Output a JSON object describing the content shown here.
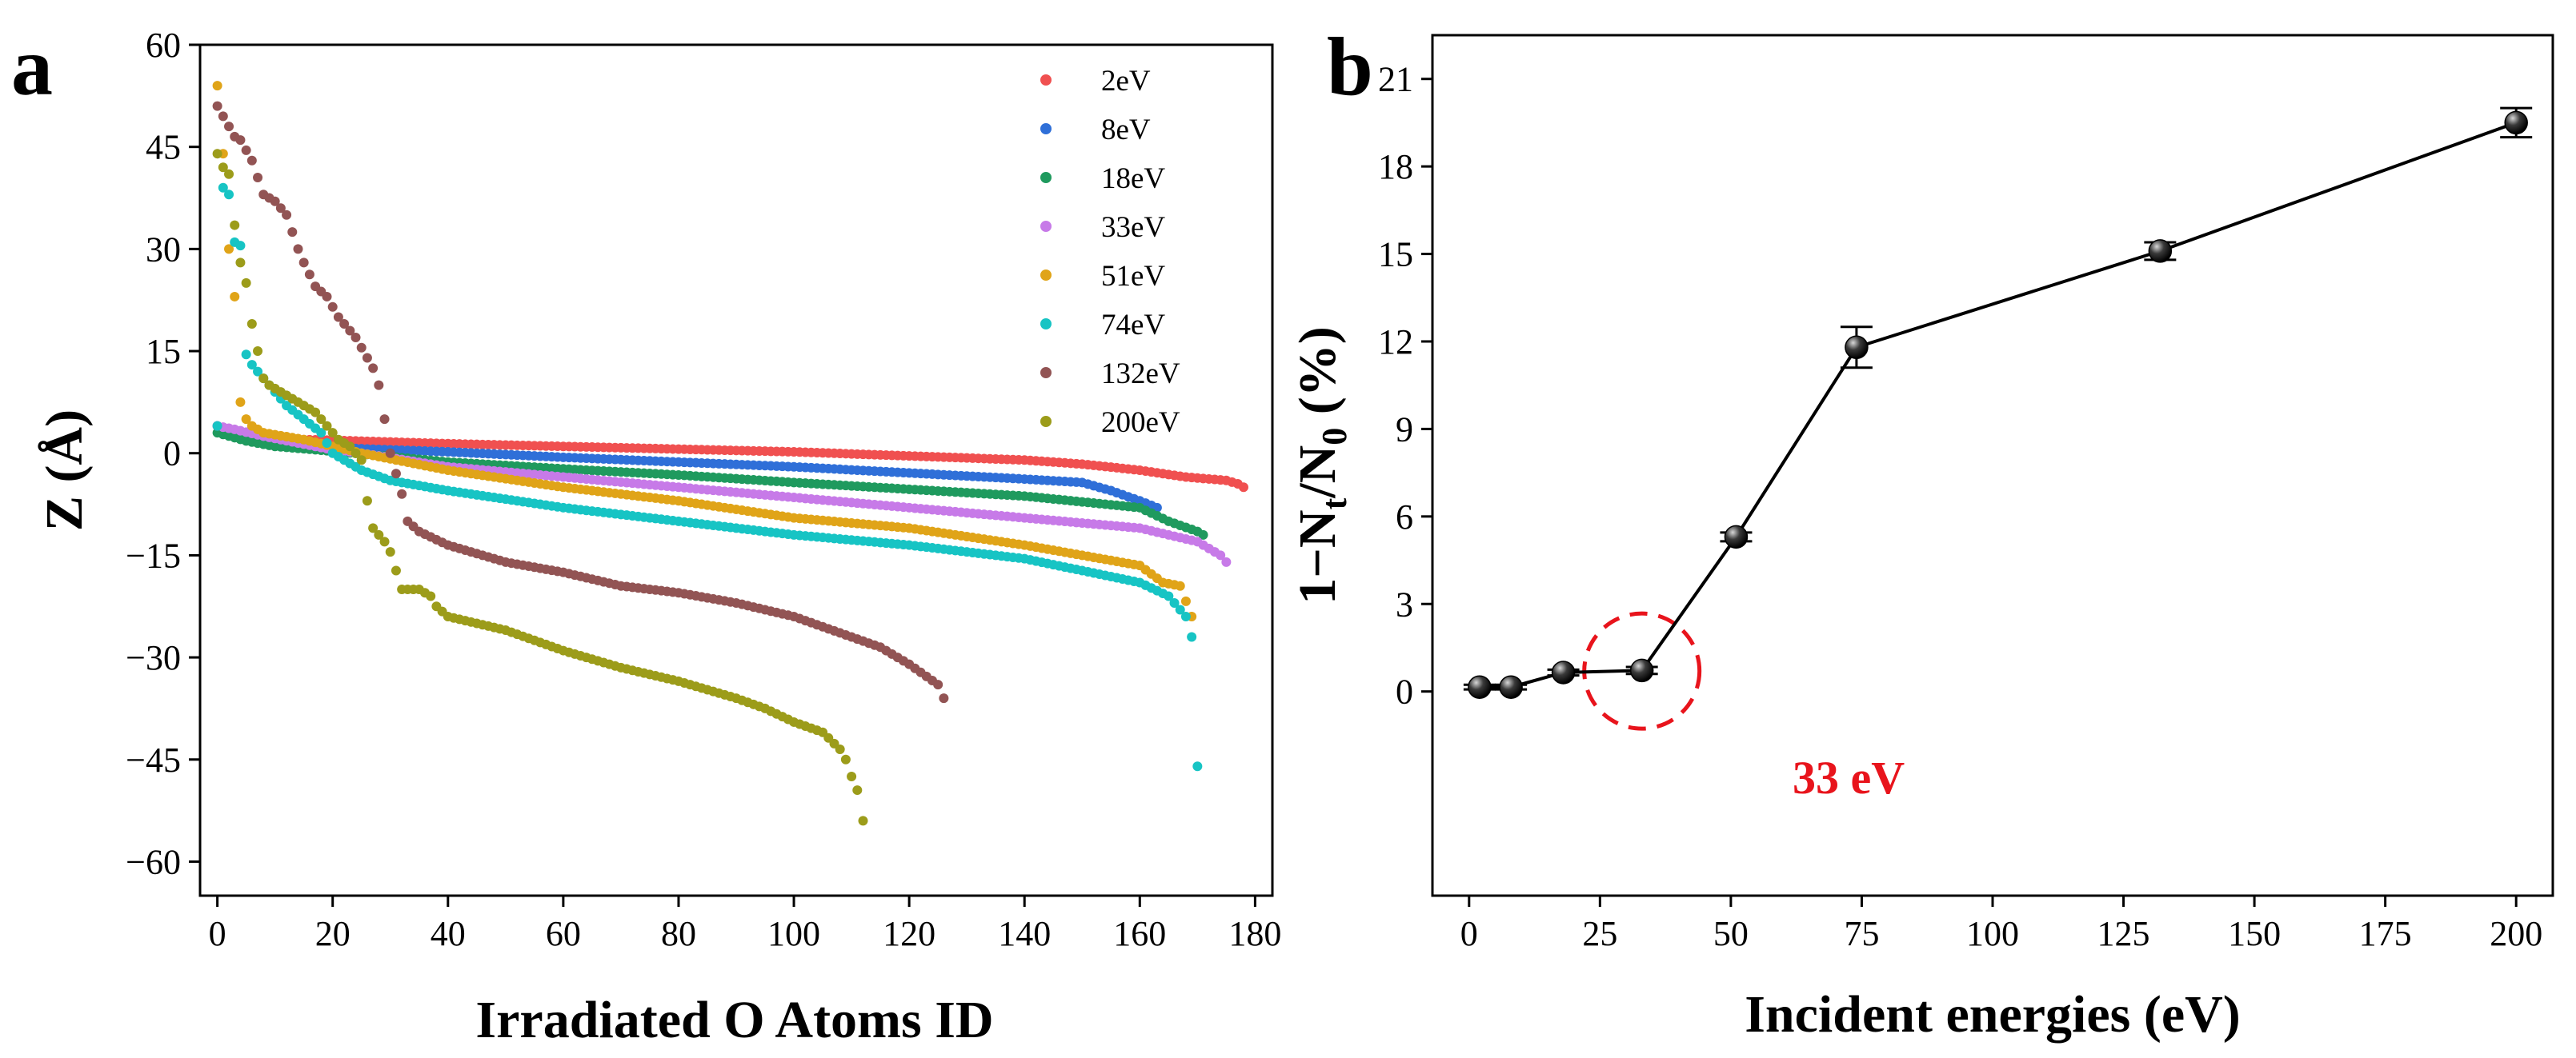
{
  "chart_data": [
    {
      "type": "scatter",
      "panel_label": "a",
      "xlabel": "Irradiated O Atoms ID",
      "ylabel": "Z (Å)",
      "xlim": [
        -3,
        183
      ],
      "ylim": [
        -65,
        60
      ],
      "xticks": [
        0,
        20,
        40,
        60,
        80,
        100,
        120,
        140,
        160,
        180
      ],
      "yticks": [
        60,
        45,
        30,
        15,
        0,
        -15,
        -30,
        -45,
        -60
      ],
      "legend_position": "top-right",
      "series": [
        {
          "name": "2eV",
          "color": "#f05050",
          "points": [
            [
              0,
              4
            ],
            [
              2,
              3
            ],
            [
              5,
              2.3
            ],
            [
              10,
              2.1
            ],
            [
              20,
              1.9
            ],
            [
              40,
              1.4
            ],
            [
              60,
              1.0
            ],
            [
              80,
              0.6
            ],
            [
              100,
              0.2
            ],
            [
              120,
              -0.4
            ],
            [
              140,
              -1.0
            ],
            [
              150,
              -1.6
            ],
            [
              160,
              -2.5
            ],
            [
              168,
              -3.5
            ],
            [
              175,
              -4
            ],
            [
              177,
              -4.5
            ],
            [
              178,
              -5
            ]
          ]
        },
        {
          "name": "8eV",
          "color": "#2f6fd8",
          "points": [
            [
              0,
              4
            ],
            [
              3,
              2.5
            ],
            [
              10,
              1.5
            ],
            [
              20,
              0.8
            ],
            [
              40,
              0.2
            ],
            [
              60,
              -0.6
            ],
            [
              80,
              -1.3
            ],
            [
              100,
              -2
            ],
            [
              120,
              -2.9
            ],
            [
              140,
              -3.8
            ],
            [
              150,
              -4.3
            ],
            [
              155,
              -5.5
            ],
            [
              160,
              -7
            ],
            [
              163,
              -8
            ]
          ]
        },
        {
          "name": "18eV",
          "color": "#1f9a5e",
          "points": [
            [
              0,
              3
            ],
            [
              5,
              1.8
            ],
            [
              10,
              1
            ],
            [
              20,
              0.3
            ],
            [
              40,
              -1.3
            ],
            [
              60,
              -2.3
            ],
            [
              80,
              -3.2
            ],
            [
              100,
              -4.3
            ],
            [
              120,
              -5.3
            ],
            [
              140,
              -6.3
            ],
            [
              160,
              -8
            ],
            [
              165,
              -10
            ],
            [
              170,
              -11.5
            ],
            [
              171,
              -12
            ]
          ]
        },
        {
          "name": "33eV",
          "color": "#c77ae8",
          "points": [
            [
              0,
              4
            ],
            [
              3,
              3.5
            ],
            [
              8,
              2.5
            ],
            [
              20,
              0.5
            ],
            [
              25,
              0
            ],
            [
              40,
              -2
            ],
            [
              60,
              -3.5
            ],
            [
              80,
              -5
            ],
            [
              100,
              -6.5
            ],
            [
              120,
              -8
            ],
            [
              140,
              -9.5
            ],
            [
              160,
              -11
            ],
            [
              170,
              -13
            ],
            [
              174,
              -15
            ],
            [
              175,
              -16
            ]
          ]
        },
        {
          "name": "51eV",
          "color": "#e0a418",
          "points": [
            [
              0,
              54
            ],
            [
              1,
              44
            ],
            [
              2,
              30
            ],
            [
              3,
              23
            ],
            [
              4,
              7.5
            ],
            [
              5,
              5
            ],
            [
              6,
              4
            ],
            [
              8,
              3
            ],
            [
              15,
              2
            ],
            [
              25,
              0
            ],
            [
              40,
              -2.5
            ],
            [
              60,
              -5
            ],
            [
              80,
              -7
            ],
            [
              100,
              -9.5
            ],
            [
              120,
              -11
            ],
            [
              140,
              -13.5
            ],
            [
              160,
              -16.5
            ],
            [
              164,
              -19
            ],
            [
              167,
              -19.5
            ],
            [
              169,
              -24
            ]
          ]
        },
        {
          "name": "74eV",
          "color": "#17c4c4",
          "points": [
            [
              0,
              4
            ],
            [
              1,
              39
            ],
            [
              2,
              38
            ],
            [
              3,
              31
            ],
            [
              4,
              30.5
            ],
            [
              5,
              14.5
            ],
            [
              6,
              13
            ],
            [
              8,
              11
            ],
            [
              10,
              9
            ],
            [
              12,
              7
            ],
            [
              15,
              5
            ],
            [
              18,
              3
            ],
            [
              20,
              0
            ],
            [
              25,
              -2.5
            ],
            [
              30,
              -4
            ],
            [
              40,
              -5.5
            ],
            [
              60,
              -8
            ],
            [
              80,
              -10
            ],
            [
              100,
              -12
            ],
            [
              120,
              -13.5
            ],
            [
              140,
              -15.5
            ],
            [
              160,
              -19
            ],
            [
              165,
              -21
            ],
            [
              168,
              -24
            ],
            [
              169,
              -27
            ],
            [
              170,
              -46
            ]
          ]
        },
        {
          "name": "132eV",
          "color": "#925454",
          "points": [
            [
              0,
              51
            ],
            [
              1,
              49.5
            ],
            [
              3,
              46.5
            ],
            [
              4,
              46
            ],
            [
              6,
              43
            ],
            [
              8,
              38
            ],
            [
              9,
              37.5
            ],
            [
              10,
              37
            ],
            [
              12,
              35
            ],
            [
              14,
              30
            ],
            [
              15,
              28
            ],
            [
              17,
              24.5
            ],
            [
              19,
              23
            ],
            [
              21,
              20
            ],
            [
              22,
              19
            ],
            [
              24,
              17
            ],
            [
              25,
              15.5
            ],
            [
              27,
              12.5
            ],
            [
              28,
              10
            ],
            [
              30,
              0
            ],
            [
              31,
              -3
            ],
            [
              32,
              -6
            ],
            [
              33,
              -10
            ],
            [
              35,
              -11.5
            ],
            [
              40,
              -13.5
            ],
            [
              50,
              -16
            ],
            [
              60,
              -17.5
            ],
            [
              70,
              -19.5
            ],
            [
              80,
              -20.5
            ],
            [
              90,
              -22
            ],
            [
              100,
              -24
            ],
            [
              110,
              -27
            ],
            [
              115,
              -28.5
            ],
            [
              120,
              -31
            ],
            [
              125,
              -34
            ],
            [
              126,
              -36
            ]
          ]
        },
        {
          "name": "200eV",
          "color": "#9c9c1a",
          "points": [
            [
              0,
              44
            ],
            [
              1,
              42
            ],
            [
              2,
              41
            ],
            [
              3,
              33.5
            ],
            [
              4,
              28
            ],
            [
              5,
              25
            ],
            [
              6,
              19
            ],
            [
              7,
              15
            ],
            [
              8,
              11
            ],
            [
              9,
              10
            ],
            [
              11,
              9
            ],
            [
              13,
              8
            ],
            [
              15,
              7
            ],
            [
              17,
              6
            ],
            [
              19,
              4
            ],
            [
              21,
              2
            ],
            [
              23,
              1
            ],
            [
              25,
              -1
            ],
            [
              26,
              -7
            ],
            [
              27,
              -11
            ],
            [
              28,
              -12
            ],
            [
              29,
              -13
            ],
            [
              30,
              -14.5
            ],
            [
              32,
              -20
            ],
            [
              35,
              -20
            ],
            [
              37,
              -21
            ],
            [
              38,
              -22.5
            ],
            [
              40,
              -24
            ],
            [
              50,
              -26
            ],
            [
              60,
              -29
            ],
            [
              70,
              -31.5
            ],
            [
              80,
              -33.5
            ],
            [
              90,
              -36
            ],
            [
              95,
              -37.5
            ],
            [
              100,
              -39.5
            ],
            [
              105,
              -41
            ],
            [
              108,
              -43.5
            ],
            [
              109,
              -45
            ],
            [
              110,
              -47.5
            ],
            [
              111,
              -49.5
            ],
            [
              112,
              -54
            ]
          ]
        }
      ]
    },
    {
      "type": "line",
      "panel_label": "b",
      "xlabel": "Incident energies (eV)",
      "ylabel_parts": [
        "1−N",
        "t",
        "/N",
        "0",
        " (%)"
      ],
      "xlim": [
        -7,
        207
      ],
      "ylim": [
        -7,
        22.5
      ],
      "xticks": [
        0,
        25,
        50,
        75,
        100,
        125,
        150,
        175,
        200
      ],
      "yticks": [
        0,
        3,
        6,
        9,
        12,
        15,
        18,
        21
      ],
      "series": [
        {
          "name": "1−Nt/N0",
          "x": [
            2,
            8,
            18,
            33,
            51,
            74,
            132,
            200
          ],
          "y": [
            0.15,
            0.15,
            0.65,
            0.72,
            5.3,
            11.8,
            15.1,
            19.5
          ],
          "yerr": [
            0.08,
            0.08,
            0.1,
            0.12,
            0.15,
            0.7,
            0.3,
            0.5
          ]
        }
      ],
      "annotation": {
        "text": "33 eV",
        "x": 33,
        "y": 0.7,
        "color": "#e8141c"
      }
    }
  ]
}
